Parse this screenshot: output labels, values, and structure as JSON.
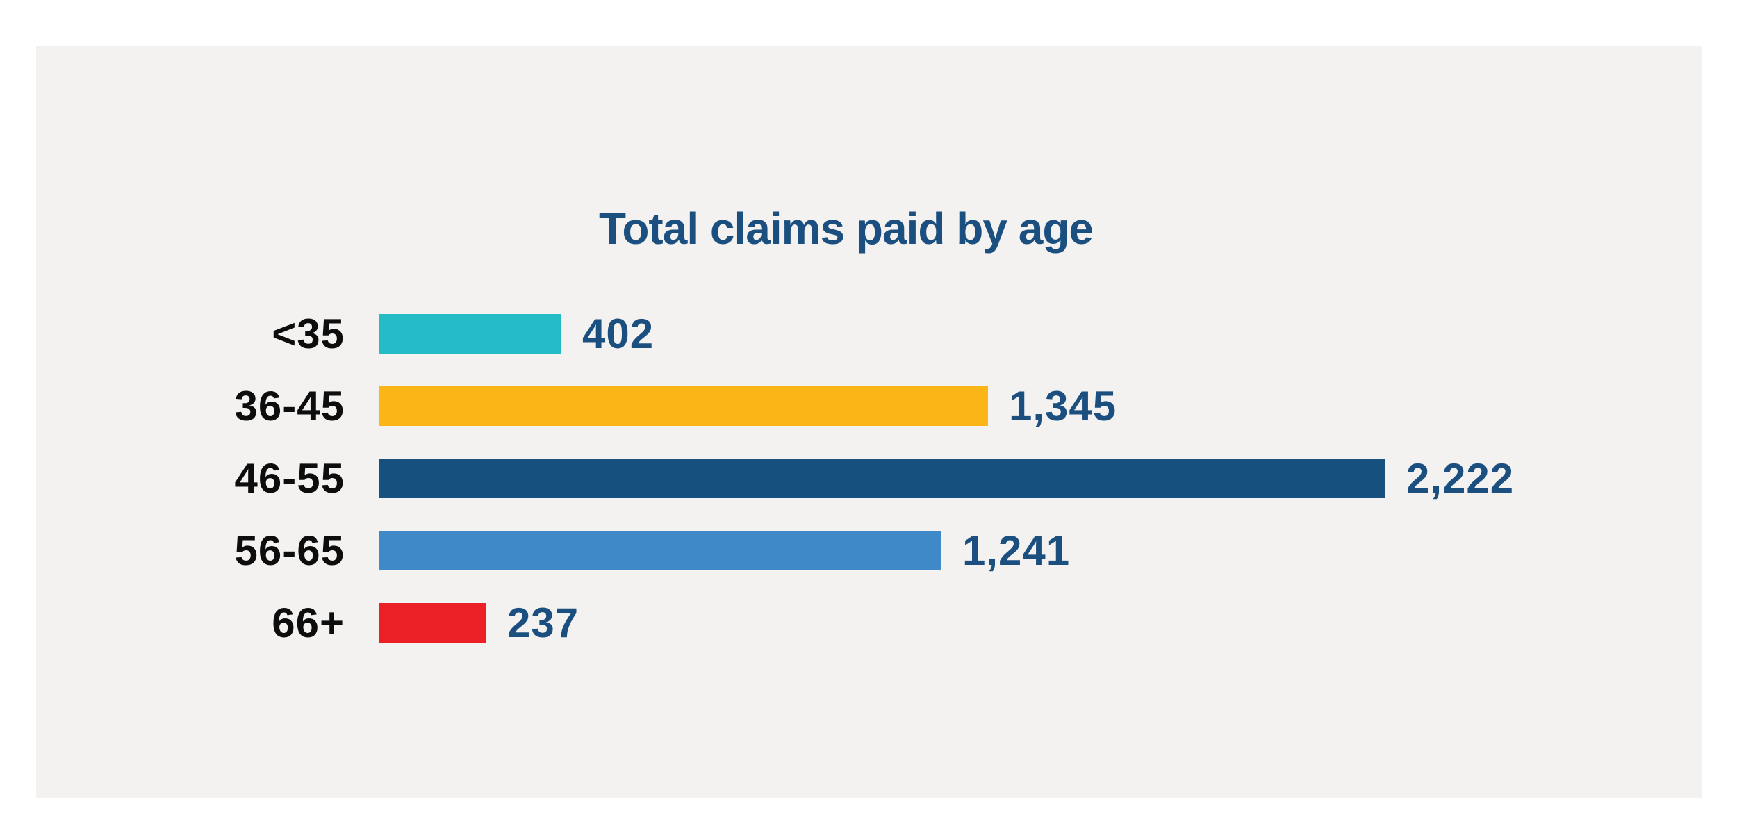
{
  "canvas": {
    "background": "#ffffff",
    "panel_background": "#f3f2f0"
  },
  "chart_data": {
    "type": "bar",
    "orientation": "horizontal",
    "title": "Total claims paid by age",
    "categories": [
      "<35",
      "36-45",
      "46-55",
      "56-65",
      "66+"
    ],
    "values": [
      402,
      1345,
      2222,
      1241,
      237
    ],
    "value_labels": [
      "402",
      "1,345",
      "2,222",
      "1,241",
      "237"
    ],
    "bar_colors": [
      "#24bcc6",
      "#fbb517",
      "#15507f",
      "#3f89c8",
      "#ec2127"
    ],
    "title_color": "#1b4f7f",
    "value_label_color": "#1b4f7f",
    "category_label_color": "#0d0d0d",
    "xlim": [
      0,
      2222
    ],
    "grid": false,
    "legend": false,
    "value_label_position": "right-of-bar"
  }
}
